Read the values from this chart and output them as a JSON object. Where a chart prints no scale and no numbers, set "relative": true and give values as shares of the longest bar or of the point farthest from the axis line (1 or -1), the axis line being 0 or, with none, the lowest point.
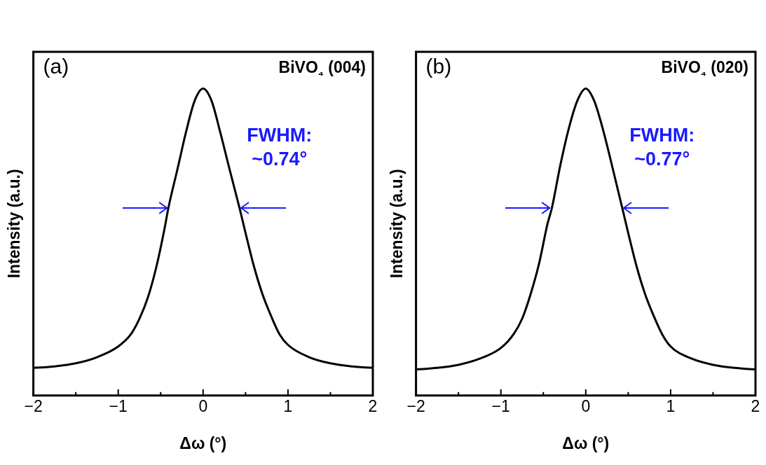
{
  "chart_data": [
    {
      "type": "line",
      "xlabel": "Δω (°)",
      "ylabel": "Intensity (a.u.)",
      "relative": true,
      "grid": false,
      "tick_labels": "x",
      "marker": "none",
      "line_style": "solid",
      "annotations": [
        "(a)",
        "BiVO₄ (004)",
        "FWHM:\n~0.74°"
      ],
      "xlim": [
        -2,
        2
      ],
      "xticks": [
        -2,
        {
          "value": -1.5,
          "label": null
        },
        -1,
        {
          "value": -0.5,
          "label": null
        },
        0,
        {
          "value": 0.5,
          "label": null
        },
        1,
        {
          "value": 1.5,
          "label": null
        },
        2
      ],
      "series": [
        {
          "color": "#000000",
          "x": [
            -2,
            -1.75,
            -1.5,
            -1.25,
            -1,
            -0.85,
            -0.75,
            -0.65,
            -0.55,
            -0.45,
            -0.41,
            -0.3,
            -0.2,
            -0.1,
            0,
            0.1,
            0.2,
            0.3,
            0.43,
            0.5,
            0.6,
            0.7,
            0.8,
            0.9,
            1,
            1.25,
            1.5,
            1.75,
            2
          ],
          "values": [
            0.09,
            0.095,
            0.105,
            0.125,
            0.16,
            0.2,
            0.25,
            0.32,
            0.42,
            0.55,
            0.61,
            0.74,
            0.86,
            0.96,
            1,
            0.96,
            0.86,
            0.75,
            0.61,
            0.53,
            0.42,
            0.33,
            0.26,
            0.2,
            0.165,
            0.125,
            0.105,
            0.095,
            0.09
          ]
        }
      ]
    },
    {
      "type": "line",
      "xlabel": "Δω (°)",
      "ylabel": "Intensity (a.u.)",
      "relative": true,
      "grid": false,
      "tick_labels": "x",
      "marker": "none",
      "line_style": "solid",
      "annotations": [
        "(b)",
        "BiVO₄ (020)",
        "FWHM:\n~0.77°"
      ],
      "xlim": [
        -2,
        2
      ],
      "xticks": [
        -2,
        {
          "value": -1.5,
          "label": null
        },
        -1,
        {
          "value": -0.5,
          "label": null
        },
        0,
        {
          "value": 0.5,
          "label": null
        },
        1,
        {
          "value": 1.5,
          "label": null
        },
        2
      ],
      "series": [
        {
          "color": "#000000",
          "x": [
            -2,
            -1.75,
            -1.5,
            -1.25,
            -1,
            -0.85,
            -0.75,
            -0.65,
            -0.55,
            -0.45,
            -0.4,
            -0.3,
            -0.2,
            -0.1,
            0,
            0.1,
            0.2,
            0.3,
            0.44,
            0.5,
            0.6,
            0.7,
            0.8,
            0.9,
            1,
            1.25,
            1.5,
            1.75,
            2
          ],
          "values": [
            0.085,
            0.09,
            0.1,
            0.12,
            0.155,
            0.2,
            0.25,
            0.33,
            0.43,
            0.56,
            0.61,
            0.75,
            0.87,
            0.96,
            1,
            0.96,
            0.87,
            0.76,
            0.6,
            0.53,
            0.42,
            0.33,
            0.26,
            0.2,
            0.16,
            0.12,
            0.1,
            0.09,
            0.085
          ]
        }
      ]
    }
  ]
}
